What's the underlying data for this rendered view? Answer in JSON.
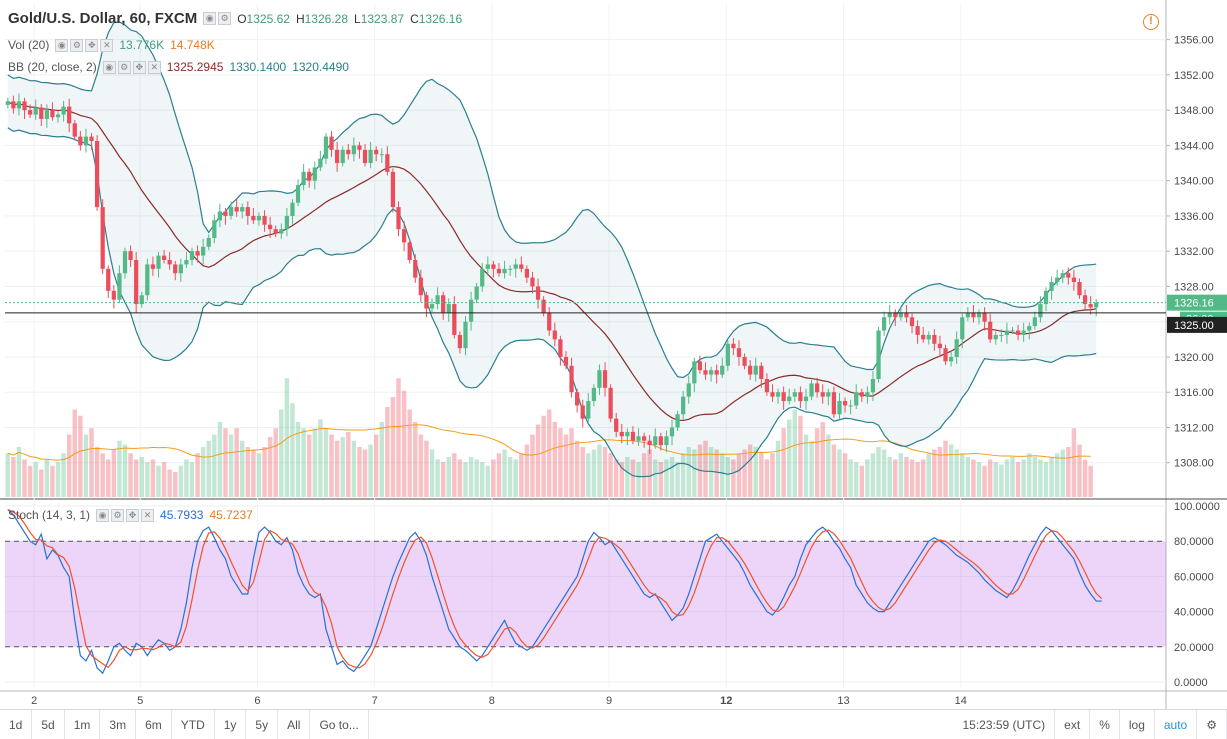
{
  "header": {
    "symbol": "Gold/U.S. Dollar, 60, FXCM",
    "open_label": "O",
    "open": "1325.62",
    "high_label": "H",
    "high": "1326.28",
    "low_label": "L",
    "low": "1323.87",
    "close_label": "C",
    "close": "1326.16"
  },
  "indicators": {
    "vol": {
      "label": "Vol (20)",
      "v1": "13.776K",
      "v2": "14.748K"
    },
    "bb": {
      "label": "BB (20, close, 2)",
      "basis": "1325.2945",
      "upper": "1330.1400",
      "lower": "1320.4490"
    },
    "stoch": {
      "label": "Stoch (14, 3, 1)",
      "k": "45.7933",
      "d": "45.7237"
    }
  },
  "price_scale": {
    "ticks": [
      "1356.00",
      "1352.00",
      "1348.00",
      "1344.00",
      "1340.00",
      "1336.00",
      "1332.00",
      "1328.00",
      "1324.00",
      "1320.00",
      "1316.00",
      "1312.00",
      "1308.00"
    ],
    "last_price_label": "1326.16",
    "crosshair_label": "1325.00",
    "countdown_label": "36:00"
  },
  "stoch_scale": {
    "ticks": [
      "100.0000",
      "80.0000",
      "60.0000",
      "40.0000",
      "20.0000",
      "0.0000"
    ]
  },
  "time_axis": {
    "labels": [
      "2",
      "5",
      "6",
      "7",
      "8",
      "9",
      "12",
      "13",
      "14"
    ]
  },
  "bottom_bar": {
    "ranges": [
      "1d",
      "5d",
      "1m",
      "3m",
      "6m",
      "YTD",
      "1y",
      "5y",
      "All"
    ],
    "goto": "Go to...",
    "clock": "15:23:59 (UTC)",
    "ext": "ext",
    "pct": "%",
    "log": "log",
    "auto": "auto"
  },
  "colors": {
    "up": "#53b987",
    "down": "#eb4d5c",
    "bb_basis": "#8b2a2a",
    "bb_band": "#2a7f8f",
    "stoch_k": "#2a6fd6",
    "stoch_d": "#f0522d",
    "vol_ma": "#f39c12"
  },
  "chart_data": {
    "type": "candlestick",
    "y_range": [
      1304,
      1358
    ],
    "closes": [
      1349,
      1348.2,
      1349,
      1348,
      1347.5,
      1348.3,
      1347,
      1348,
      1347.2,
      1347.5,
      1348.4,
      1346.5,
      1345,
      1344,
      1345,
      1344.5,
      1337,
      1330,
      1327.5,
      1326.5,
      1329.5,
      1332,
      1331,
      1326,
      1327,
      1330.5,
      1330,
      1331.5,
      1331,
      1330.5,
      1329.5,
      1330.5,
      1331,
      1332,
      1331.5,
      1332.5,
      1333.5,
      1335.5,
      1336.5,
      1336,
      1337,
      1336.5,
      1337,
      1336,
      1335.5,
      1336,
      1335,
      1334.5,
      1334,
      1334.5,
      1336,
      1337.5,
      1339.5,
      1341,
      1340,
      1341.5,
      1342.5,
      1345,
      1343.5,
      1342,
      1343.5,
      1343,
      1344,
      1343.5,
      1342,
      1343.5,
      1343,
      1343,
      1341,
      1337,
      1334.5,
      1333,
      1331,
      1329,
      1327,
      1325.5,
      1326,
      1327,
      1325,
      1326,
      1322.5,
      1321,
      1324,
      1326.5,
      1328,
      1330,
      1330.5,
      1330,
      1329.5,
      1330,
      1330,
      1330.5,
      1330,
      1329,
      1328,
      1326.5,
      1325,
      1323,
      1322,
      1320,
      1319,
      1316,
      1314.5,
      1313,
      1315,
      1316.5,
      1318.5,
      1316.5,
      1313,
      1311.5,
      1311,
      1311.5,
      1310.5,
      1311,
      1310.5,
      1310,
      1311,
      1310,
      1311,
      1312,
      1313.5,
      1315.5,
      1317,
      1319.5,
      1318.5,
      1318,
      1318.5,
      1318,
      1319,
      1321.5,
      1321,
      1320,
      1319,
      1318,
      1319,
      1317.5,
      1316,
      1315.5,
      1316,
      1315,
      1315.5,
      1316,
      1315,
      1315.5,
      1317,
      1316,
      1315.5,
      1316,
      1313.5,
      1315,
      1314.5,
      1314.5,
      1316,
      1315.5,
      1316,
      1317.5,
      1323,
      1324.5,
      1325,
      1324.5,
      1325,
      1324.5,
      1323.5,
      1322.5,
      1322,
      1322.5,
      1321.5,
      1321,
      1319.5,
      1320,
      1322,
      1324.5,
      1325,
      1324.5,
      1325,
      1324,
      1322,
      1322.5,
      1322.5,
      1323,
      1323,
      1322.5,
      1323,
      1323.5,
      1324.5,
      1326,
      1327.5,
      1328.5,
      1329,
      1329.5,
      1329,
      1328.5,
      1327,
      1326,
      1325.62,
      1326.16
    ],
    "stoch_k": [
      98,
      95,
      90,
      85,
      80,
      78,
      84,
      70,
      75,
      72,
      65,
      60,
      35,
      15,
      12,
      18,
      8,
      5,
      12,
      20,
      22,
      18,
      15,
      22,
      20,
      15,
      20,
      24,
      22,
      18,
      20,
      30,
      45,
      65,
      80,
      86,
      88,
      82,
      75,
      70,
      60,
      55,
      50,
      50,
      70,
      85,
      88,
      85,
      80,
      78,
      82,
      75,
      62,
      55,
      50,
      48,
      50,
      30,
      20,
      10,
      12,
      8,
      6,
      10,
      15,
      20,
      30,
      40,
      50,
      60,
      68,
      75,
      82,
      85,
      80,
      72,
      60,
      50,
      40,
      30,
      25,
      20,
      18,
      15,
      12,
      15,
      20,
      25,
      30,
      35,
      28,
      22,
      20,
      18,
      20,
      25,
      30,
      35,
      40,
      45,
      50,
      55,
      60,
      70,
      80,
      85,
      82,
      78,
      80,
      75,
      70,
      65,
      60,
      55,
      50,
      48,
      50,
      45,
      40,
      35,
      38,
      42,
      50,
      60,
      70,
      80,
      82,
      84,
      80,
      76,
      72,
      68,
      62,
      55,
      50,
      45,
      40,
      38,
      42,
      48,
      55,
      60,
      70,
      78,
      82,
      86,
      88,
      85,
      80,
      76,
      70,
      65,
      55,
      50,
      45,
      42,
      40,
      40,
      45,
      50,
      55,
      60,
      65,
      70,
      75,
      80,
      82,
      80,
      78,
      75,
      72,
      70,
      68,
      65,
      62,
      58,
      55,
      52,
      50,
      48,
      52,
      58,
      65,
      72,
      78,
      84,
      88,
      86,
      82,
      78,
      74,
      70,
      62,
      55,
      50,
      46,
      46
    ],
    "volume_relative": [
      0.35,
      0.32,
      0.4,
      0.3,
      0.25,
      0.28,
      0.22,
      0.3,
      0.25,
      0.28,
      0.35,
      0.5,
      0.7,
      0.65,
      0.5,
      0.55,
      0.4,
      0.35,
      0.3,
      0.38,
      0.45,
      0.42,
      0.35,
      0.3,
      0.32,
      0.28,
      0.3,
      0.25,
      0.28,
      0.22,
      0.2,
      0.25,
      0.3,
      0.28,
      0.35,
      0.4,
      0.45,
      0.5,
      0.6,
      0.55,
      0.5,
      0.55,
      0.45,
      0.4,
      0.38,
      0.35,
      0.4,
      0.48,
      0.55,
      0.7,
      0.95,
      0.75,
      0.6,
      0.55,
      0.5,
      0.55,
      0.62,
      0.55,
      0.5,
      0.45,
      0.48,
      0.52,
      0.45,
      0.4,
      0.38,
      0.42,
      0.5,
      0.6,
      0.72,
      0.8,
      0.95,
      0.85,
      0.7,
      0.6,
      0.5,
      0.45,
      0.38,
      0.3,
      0.28,
      0.32,
      0.35,
      0.3,
      0.28,
      0.32,
      0.3,
      0.28,
      0.25,
      0.3,
      0.35,
      0.38,
      0.32,
      0.3,
      0.35,
      0.42,
      0.5,
      0.58,
      0.65,
      0.7,
      0.6,
      0.55,
      0.5,
      0.55,
      0.45,
      0.4,
      0.35,
      0.38,
      0.42,
      0.4,
      0.35,
      0.3,
      0.28,
      0.32,
      0.3,
      0.28,
      0.35,
      0.38,
      0.3,
      0.28,
      0.3,
      0.32,
      0.28,
      0.35,
      0.4,
      0.38,
      0.42,
      0.45,
      0.4,
      0.38,
      0.35,
      0.32,
      0.3,
      0.35,
      0.38,
      0.42,
      0.4,
      0.36,
      0.3,
      0.35,
      0.45,
      0.55,
      0.62,
      0.7,
      0.65,
      0.5,
      0.45,
      0.55,
      0.6,
      0.5,
      0.42,
      0.38,
      0.35,
      0.3,
      0.28,
      0.25,
      0.3,
      0.35,
      0.4,
      0.38,
      0.32,
      0.3,
      0.35,
      0.32,
      0.3,
      0.28,
      0.3,
      0.35,
      0.38,
      0.4,
      0.45,
      0.42,
      0.38,
      0.35,
      0.32,
      0.3,
      0.28,
      0.25,
      0.3,
      0.28,
      0.26,
      0.3,
      0.32,
      0.28,
      0.3,
      0.35,
      0.32,
      0.3,
      0.28,
      0.32,
      0.35,
      0.38,
      0.4,
      0.55,
      0.42,
      0.3,
      0.25
    ]
  }
}
